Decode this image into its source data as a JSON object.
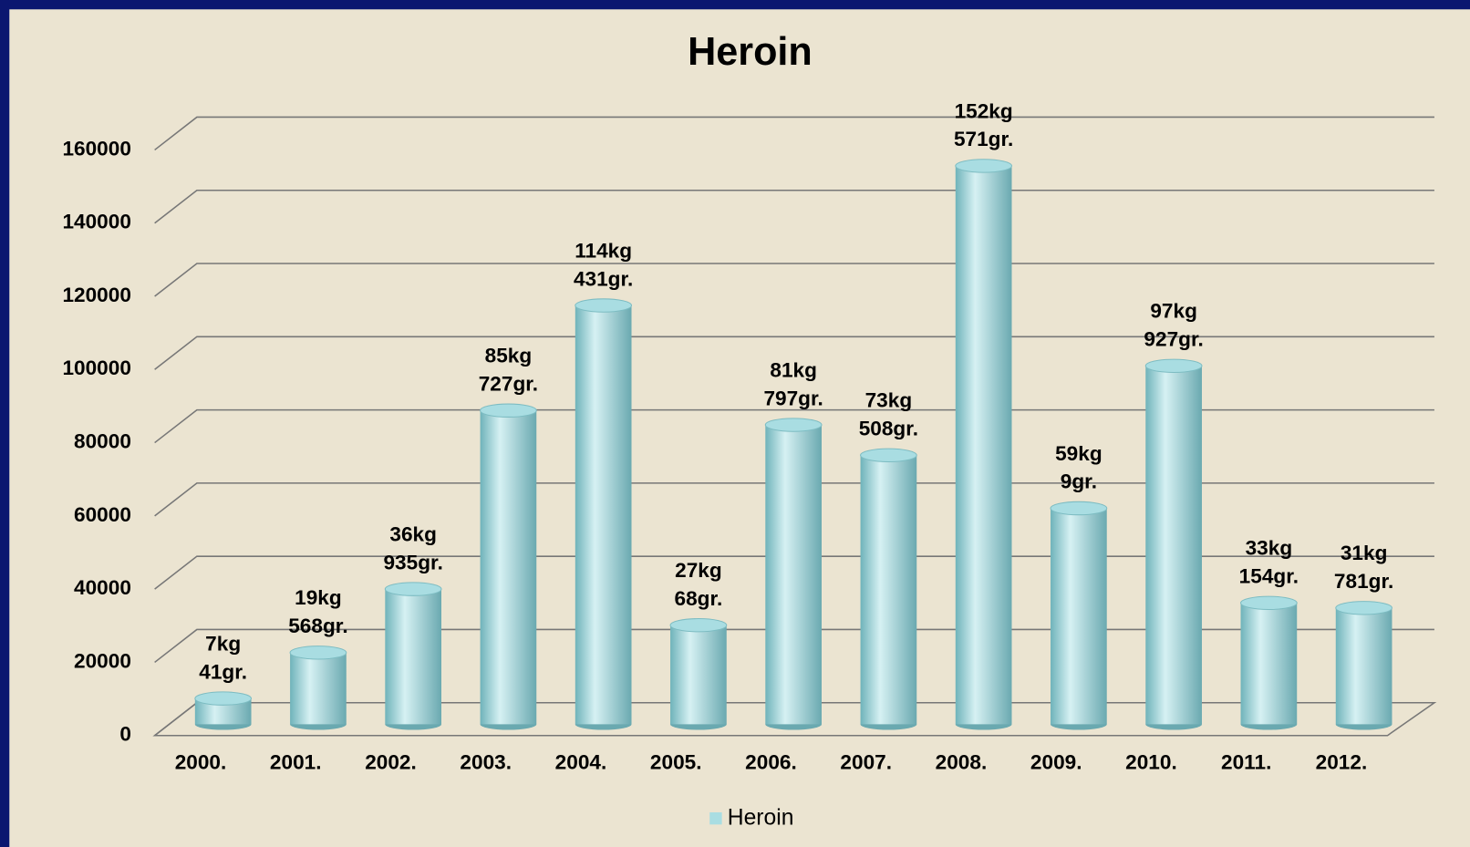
{
  "chart_data": {
    "type": "bar",
    "title": "Heroin",
    "categories": [
      "2000.",
      "2001.",
      "2002.",
      "2003.",
      "2004.",
      "2005.",
      "2006.",
      "2007.",
      "2008.",
      "2009.",
      "2010.",
      "2011.",
      "2012."
    ],
    "series": [
      {
        "name": "Heroin",
        "color": "#a9dde2",
        "values": [
          7041,
          19568,
          36935,
          85727,
          114431,
          27068,
          81797,
          73508,
          152571,
          59009,
          97927,
          33154,
          31781
        ],
        "value_labels": [
          "7kg 41gr.",
          "19kg 568gr.",
          "36kg 935gr.",
          "85kg 727gr.",
          "114kg 431gr.",
          "27kg 68gr.",
          "81kg 797gr.",
          "73kg 508gr.",
          "152kg 571gr.",
          "59kg 9gr.",
          "97kg 927gr.",
          "33kg 154gr.",
          "31kg 781gr."
        ]
      }
    ],
    "ylim": [
      0,
      160000
    ],
    "yticks": [
      0,
      20000,
      40000,
      60000,
      80000,
      100000,
      120000,
      140000,
      160000
    ],
    "grid": true,
    "legend": "bottom"
  }
}
